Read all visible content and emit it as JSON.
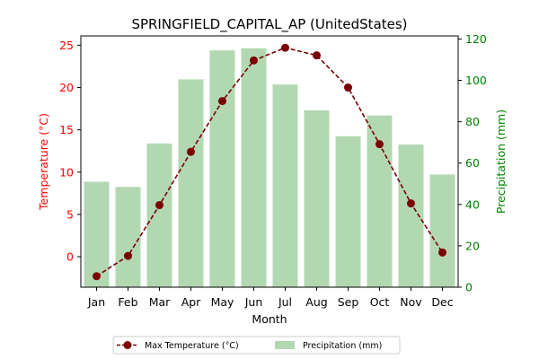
{
  "chart_data": {
    "type": "bar+line",
    "title": "SPRINGFIELD_CAPITAL_AP (UnitedStates)",
    "xlabel": "Month",
    "ylabel_left": "Temperature (°C)",
    "ylabel_right": "Precipitation (mm)",
    "categories": [
      "Jan",
      "Feb",
      "Mar",
      "Apr",
      "May",
      "Jun",
      "Jul",
      "Aug",
      "Sep",
      "Oct",
      "Nov",
      "Dec"
    ],
    "series": [
      {
        "name": "Max Temperature (°C)",
        "type": "line",
        "axis": "left",
        "values": [
          -2.3,
          0.1,
          6.1,
          12.4,
          18.4,
          23.2,
          24.7,
          23.8,
          20.0,
          13.3,
          6.3,
          0.5
        ]
      },
      {
        "name": "Precipitation (mm)",
        "type": "bar",
        "axis": "right",
        "values": [
          51,
          48.5,
          69.5,
          100.5,
          114.5,
          115.5,
          98,
          85.5,
          73,
          83,
          69,
          54.5
        ]
      }
    ],
    "ylim_left": [
      -3.6,
      26.1
    ],
    "ylim_right": [
      0,
      121.5
    ],
    "yticks_left": [
      0,
      5,
      10,
      15,
      20,
      25
    ],
    "yticks_right": [
      0,
      20,
      40,
      60,
      80,
      100,
      120
    ],
    "legend_position": "bottom-center",
    "grid": false
  },
  "colors": {
    "line": "#7b0000",
    "bar": "#b2d8b2",
    "left_axis": "#ff0000",
    "right_axis": "#008000"
  }
}
